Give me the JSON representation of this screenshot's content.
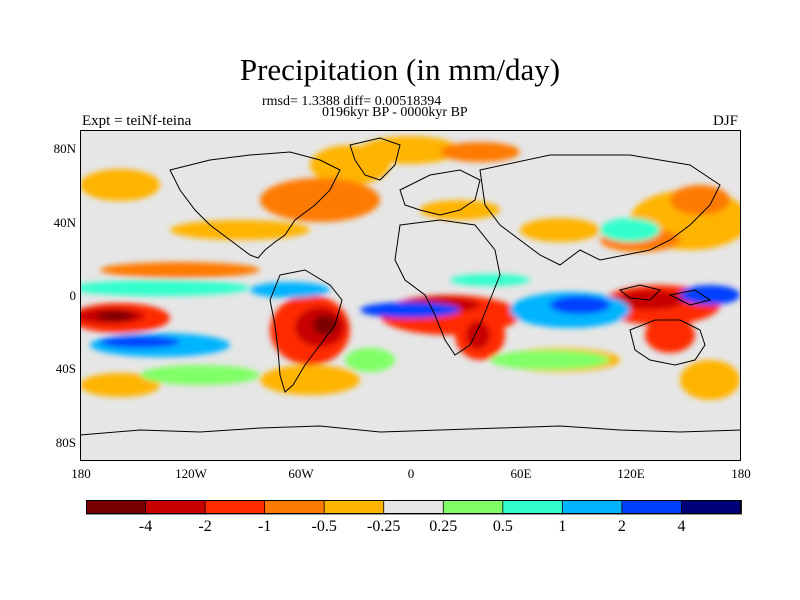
{
  "title": "Precipitation (in mm/day)",
  "stats_line": "rmsd= 1.3388 diff= 0.00518394",
  "period_line": "0196kyr BP - 0000kyr BP",
  "experiment": "Expt = teiNf-teina",
  "season": "DJF",
  "lat_ticks": [
    "80N",
    "40N",
    "0",
    "40S",
    "80S"
  ],
  "lon_ticks": [
    "180",
    "120W",
    "60W",
    "0",
    "60E",
    "120E",
    "180"
  ],
  "colorbar": {
    "labels": [
      "-4",
      "-2",
      "-1",
      "-0.5",
      "-0.25",
      "0.25",
      "0.5",
      "1",
      "2",
      "4"
    ],
    "colors": [
      "#7a0000",
      "#c80000",
      "#ff2a00",
      "#ff7a00",
      "#ffb400",
      "#e6e6e6",
      "#80ff66",
      "#33ffcc",
      "#00b4ff",
      "#0040ff",
      "#00007a"
    ]
  },
  "map_colors": {
    "background": "#e6e6e6",
    "coastline": "#000000"
  }
}
